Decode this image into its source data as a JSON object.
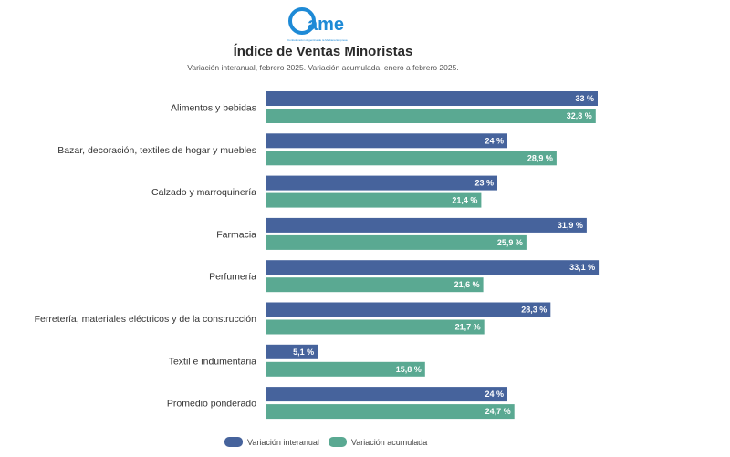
{
  "logo": {
    "text": "ame",
    "tagline": "Confederación Argentina de la Mediana Empresa"
  },
  "chart_data": {
    "type": "bar",
    "orientation": "horizontal",
    "title": "Índice de Ventas Minoristas",
    "subtitle": "Variación interanual, febrero 2025. Variación acumulada, enero a febrero 2025.",
    "categories": [
      "Alimentos y bebidas",
      "Bazar, decoración, textiles de hogar y muebles",
      "Calzado y marroquinería",
      "Farmacia",
      "Perfumería",
      "Ferretería, materiales eléctricos y de la construcción",
      "Textil e indumentaria",
      "Promedio ponderado"
    ],
    "series": [
      {
        "name": "Variación interanual",
        "color": "#46639c",
        "values": [
          33,
          24,
          23,
          31.9,
          33.1,
          28.3,
          5.1,
          24
        ],
        "labels": [
          "33 %",
          "24 %",
          "23 %",
          "31,9 %",
          "33,1 %",
          "28,3 %",
          "5,1 %",
          "24 %"
        ]
      },
      {
        "name": "Variación acumulada",
        "color": "#5aa992",
        "values": [
          32.8,
          28.9,
          21.4,
          25.9,
          21.6,
          21.7,
          15.8,
          24.7
        ],
        "labels": [
          "32,8 %",
          "28,9 %",
          "21,4 %",
          "25,9 %",
          "21,6 %",
          "21,7 %",
          "15,8 %",
          "24,7 %"
        ]
      }
    ],
    "xlim": [
      0,
      35
    ],
    "grid": false,
    "legend": "bottom"
  }
}
